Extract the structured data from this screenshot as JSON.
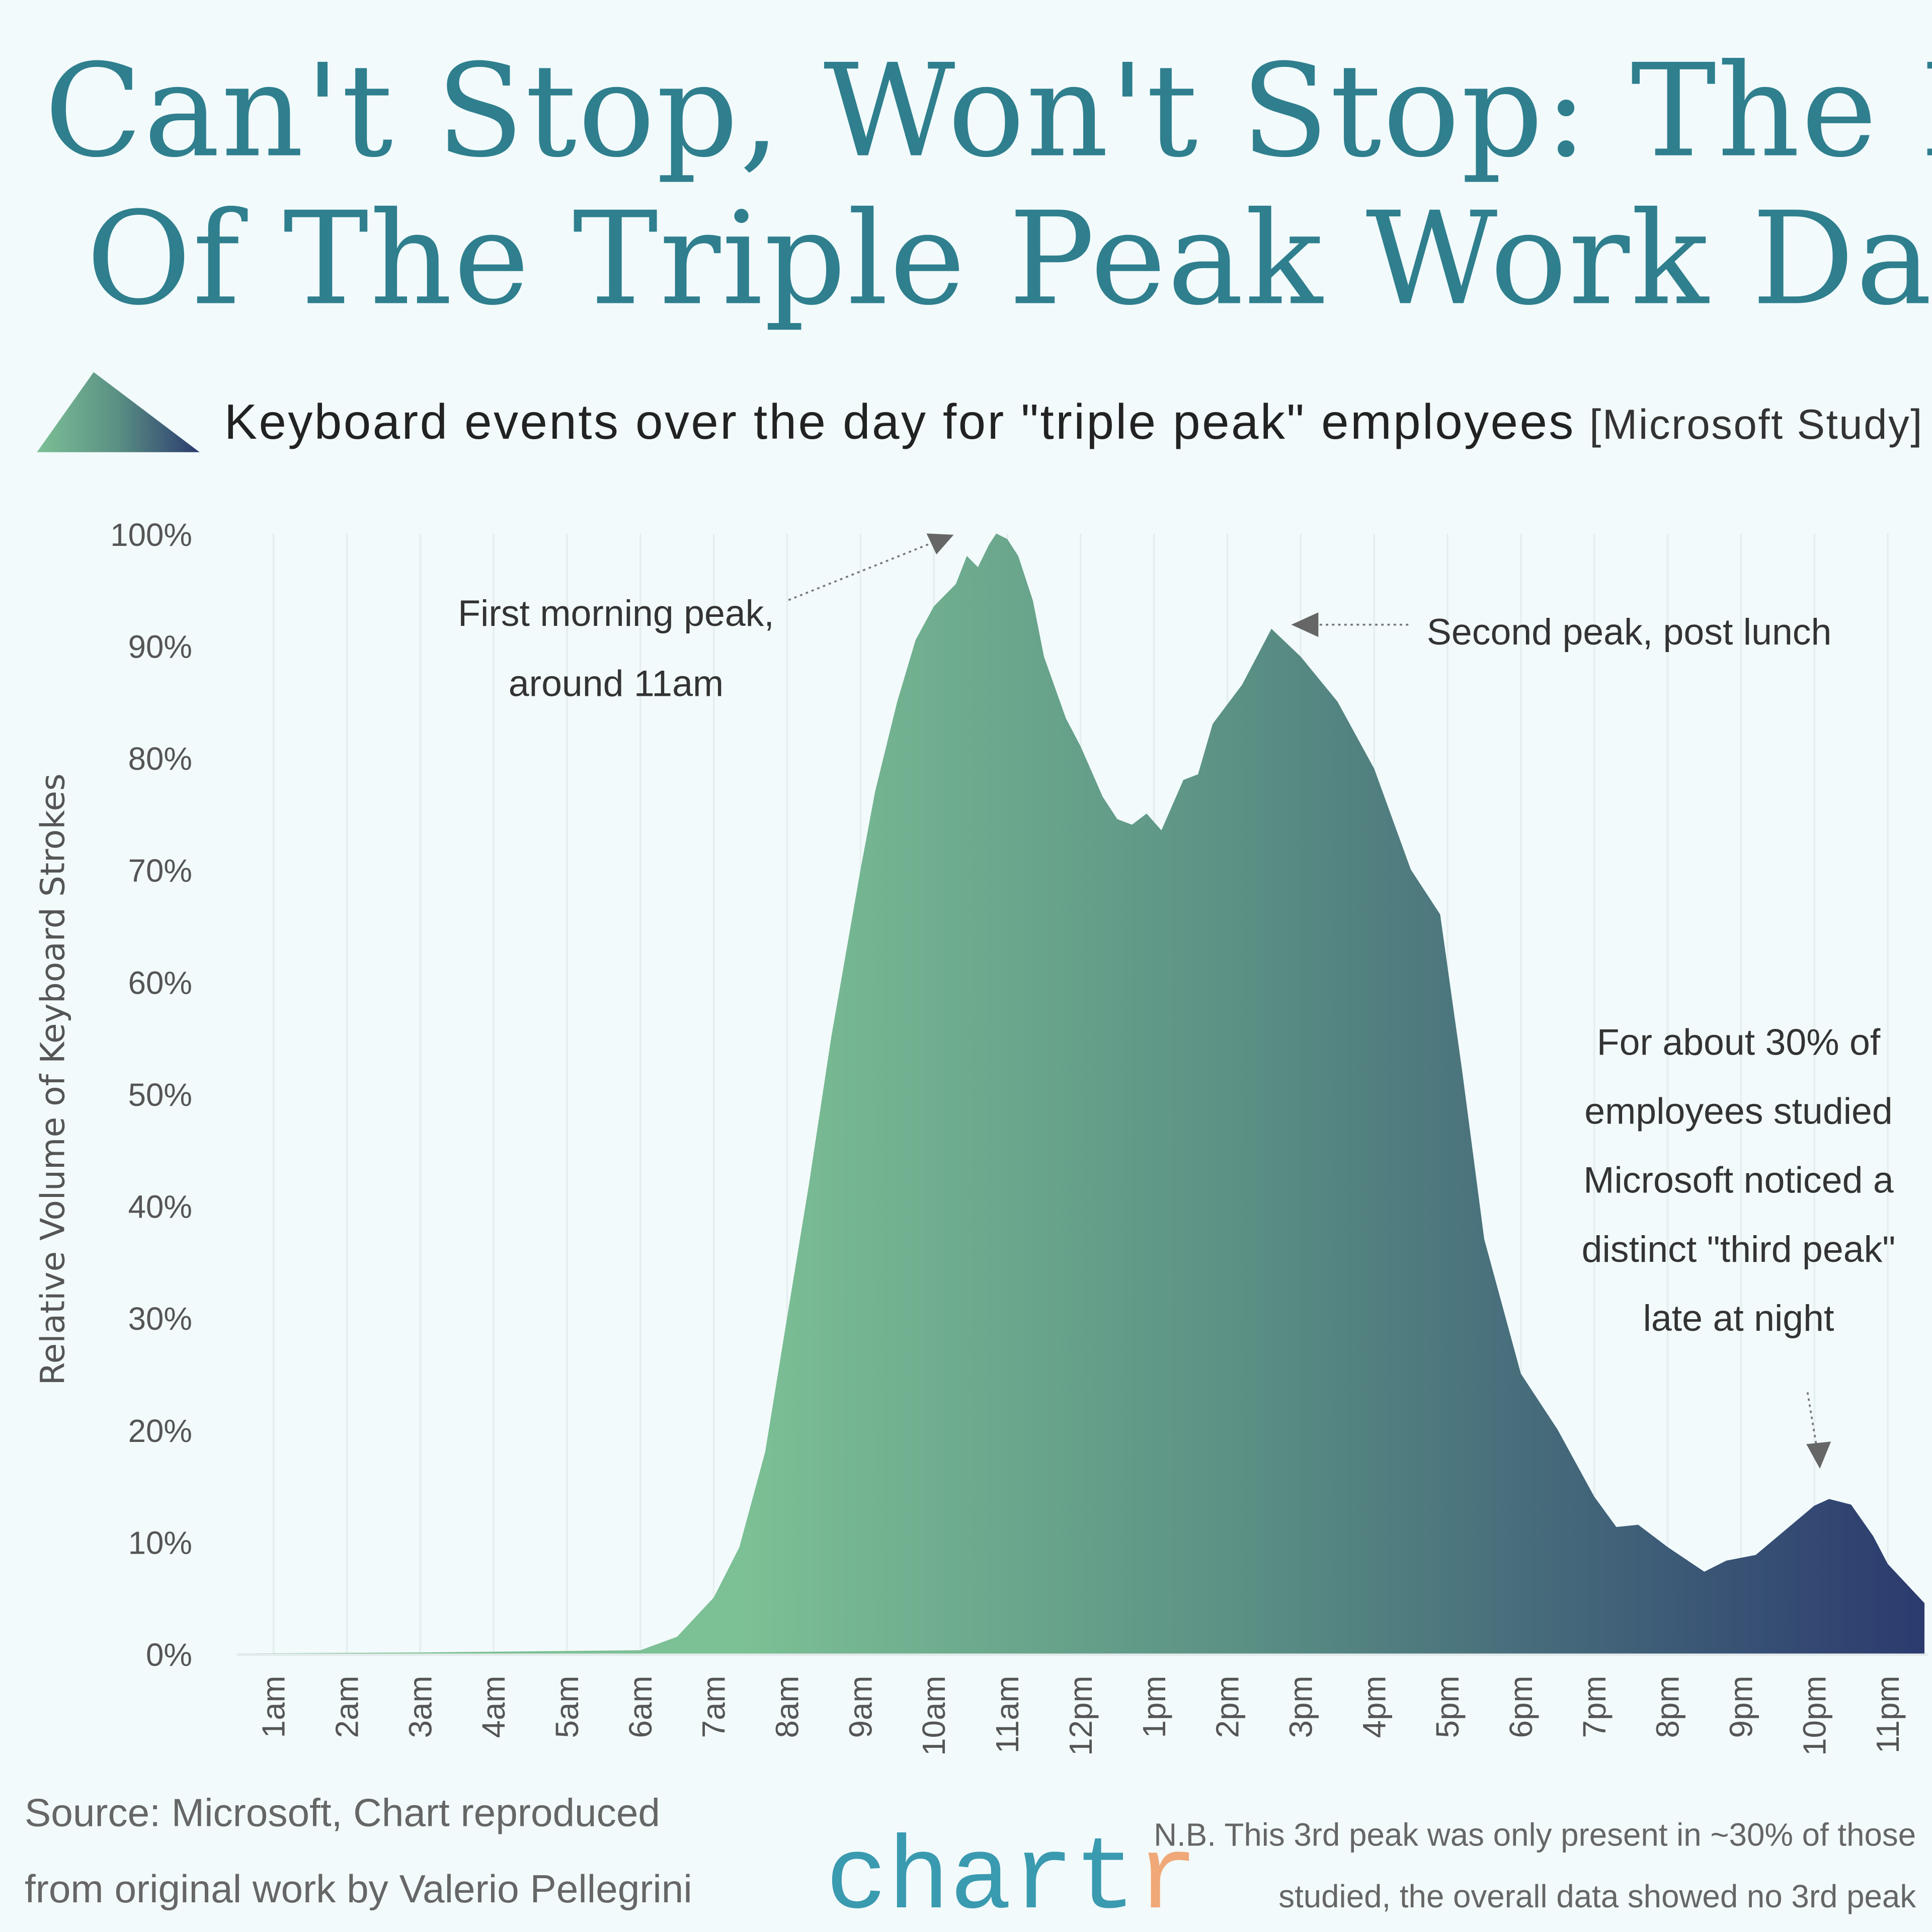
{
  "title_lines": [
    "Can't Stop, Won't Stop: The Rise",
    "Of The Triple Peak Work Day"
  ],
  "subtitle": "Keyboard events over the day for \"triple peak\" employees",
  "subtitle_source": "[Microsoft Study]",
  "colors": {
    "background": "#f2fafb",
    "title": "#2f7f8e",
    "gradient_start": "#7cc095",
    "gradient_mid": "#5a8f84",
    "gradient_end": "#2b3a6e",
    "logo_main": "#3a9ab0",
    "logo_accent": "#f0a878"
  },
  "chart_data": {
    "type": "area",
    "title": "",
    "xlabel": "",
    "ylabel": "Relative Volume of Keyboard Strokes",
    "ylim": [
      0,
      100
    ],
    "xlim_hours": [
      0.5,
      23.5
    ],
    "y_ticks": [
      "0%",
      "10%",
      "20%",
      "30%",
      "40%",
      "50%",
      "60%",
      "70%",
      "80%",
      "90%",
      "100%"
    ],
    "x_ticks": [
      "1am",
      "2am",
      "3am",
      "4am",
      "5am",
      "6am",
      "7am",
      "8am",
      "9am",
      "10am",
      "11am",
      "12pm",
      "1pm",
      "2pm",
      "3pm",
      "4pm",
      "5pm",
      "6pm",
      "7pm",
      "8pm",
      "9pm",
      "10pm",
      "11pm"
    ],
    "grid": "vertical",
    "fill": "horizontal gradient green to navy",
    "points": [
      [
        0.5,
        0
      ],
      [
        3,
        0.1
      ],
      [
        6,
        0.3
      ],
      [
        6.5,
        1.5
      ],
      [
        7,
        5
      ],
      [
        7.35,
        9.5
      ],
      [
        7.7,
        18
      ],
      [
        8,
        30
      ],
      [
        8.3,
        42
      ],
      [
        8.6,
        55
      ],
      [
        9,
        70
      ],
      [
        9.2,
        77
      ],
      [
        9.5,
        85
      ],
      [
        9.75,
        90.5
      ],
      [
        10,
        93.5
      ],
      [
        10.3,
        95.5
      ],
      [
        10.45,
        98
      ],
      [
        10.6,
        97
      ],
      [
        10.75,
        99
      ],
      [
        10.85,
        100
      ],
      [
        11,
        99.5
      ],
      [
        11.15,
        98
      ],
      [
        11.35,
        94
      ],
      [
        11.5,
        89
      ],
      [
        11.8,
        83.5
      ],
      [
        12,
        81
      ],
      [
        12.3,
        76.5
      ],
      [
        12.5,
        74.5
      ],
      [
        12.7,
        74
      ],
      [
        12.9,
        75
      ],
      [
        13.1,
        73.5
      ],
      [
        13.4,
        78
      ],
      [
        13.6,
        78.5
      ],
      [
        13.8,
        83
      ],
      [
        14.2,
        86.5
      ],
      [
        14.6,
        91.5
      ],
      [
        15,
        89
      ],
      [
        15.5,
        85
      ],
      [
        16,
        79
      ],
      [
        16.5,
        70
      ],
      [
        16.9,
        66
      ],
      [
        17.2,
        52
      ],
      [
        17.5,
        37
      ],
      [
        18,
        25
      ],
      [
        18.5,
        20
      ],
      [
        19,
        14
      ],
      [
        19.3,
        11.3
      ],
      [
        19.6,
        11.5
      ],
      [
        20,
        9.5
      ],
      [
        20.5,
        7.3
      ],
      [
        20.8,
        8.3
      ],
      [
        21.2,
        8.8
      ],
      [
        21.6,
        11
      ],
      [
        22,
        13.2
      ],
      [
        22.2,
        13.8
      ],
      [
        22.5,
        13.3
      ],
      [
        22.8,
        10.5
      ],
      [
        23,
        8
      ],
      [
        23.5,
        4.5
      ]
    ],
    "annotations": [
      {
        "lines": [
          "First morning peak,",
          "around 11am"
        ]
      },
      {
        "lines": [
          "Second peak, post lunch"
        ]
      },
      {
        "lines": [
          "For about 30% of",
          "employees studied",
          "Microsoft noticed a",
          "distinct \"third peak\"",
          "late at night"
        ]
      }
    ]
  },
  "footer": {
    "source_lines": [
      "Source: Microsoft, Chart reproduced",
      "from original work by Valerio Pellegrini"
    ],
    "logo_main": "chart",
    "logo_accent": "r",
    "note_lines": [
      "N.B. This 3rd peak was only present in ~30% of those",
      "studied, the overall data showed no 3rd peak"
    ]
  }
}
